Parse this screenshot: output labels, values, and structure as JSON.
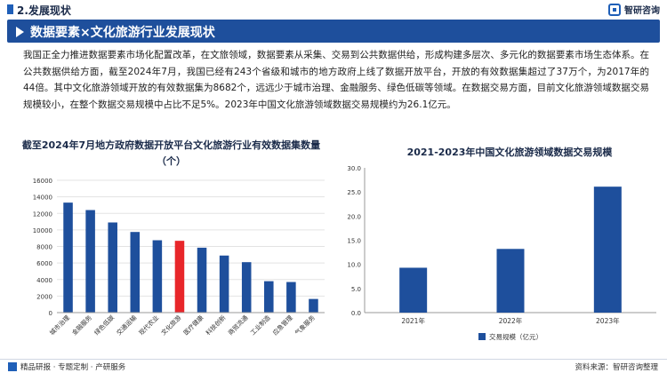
{
  "header": {
    "section_title": "2.发展现状",
    "logo_text": "智研咨询"
  },
  "banner": {
    "title": "数据要素×文化旅游行业发展现状"
  },
  "paragraph": "我国正全力推进数据要素市场化配置改革，在文旅领域，数据要素从采集、交易到公共数据供给，形成构建多层次、多元化的数据要素市场生态体系。在公共数据供给方面，截至2024年7月，我国已经有243个省级和城市的地方政府上线了数据开放平台，开放的有效数据集超过了37万个，为2017年的44倍。其中文化旅游领域开放的有效数据集为8682个，远远少于城市治理、金融服务、绿色低碳等领域。在数据交易方面，目前文化旅游领域数据交易规模较小，在整个数据交易规模中占比不足5%。2023年中国文化旅游领域数据交易规模约为26.1亿元。",
  "chart_data": [
    {
      "type": "bar",
      "title": "截至2024年7月地方政府数据开放平台文化旅游行业有效数据集数量（个）",
      "categories": [
        "城市治理",
        "金融服务",
        "绿色低碳",
        "交通运输",
        "现代农业",
        "文化旅游",
        "医疗健康",
        "科技创新",
        "商贸流通",
        "工业制造",
        "应急管理",
        "气象服务"
      ],
      "values": [
        13300,
        12400,
        10900,
        9750,
        8750,
        8682,
        7850,
        6900,
        6100,
        3800,
        3700,
        1650
      ],
      "ylim": [
        0,
        16000
      ],
      "yticks": [
        0,
        2000,
        4000,
        6000,
        8000,
        10000,
        12000,
        14000,
        16000
      ],
      "colors": {
        "default": "#1e4f9c",
        "highlight": "#e8262a"
      },
      "highlight_category": "文化旅游",
      "grid": true
    },
    {
      "type": "bar",
      "title": "2021-2023年中国文化旅游领域数据交易规模",
      "categories": [
        "2021年",
        "2022年",
        "2023年"
      ],
      "series": [
        {
          "name": "交易规模（亿元）",
          "values": [
            9.3,
            13.2,
            26.1
          ]
        }
      ],
      "ylim": [
        0,
        30
      ],
      "yticks": [
        "0.0",
        "5.0",
        "10.0",
        "15.0",
        "20.0",
        "25.0",
        "30.0"
      ],
      "colors": {
        "default": "#1e4f9c"
      },
      "legend": "bottom-left",
      "grid": false
    }
  ],
  "footer": {
    "left": "精品研报 · 专题定制 · 产研服务",
    "right": "资料来源：智研咨询整理"
  }
}
